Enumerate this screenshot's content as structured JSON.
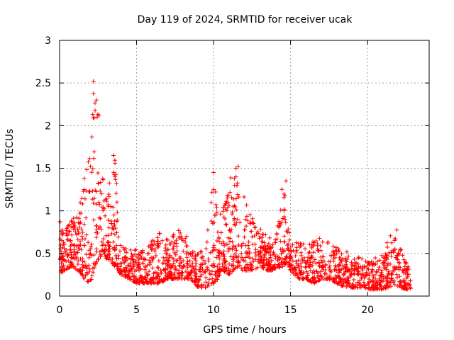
{
  "chart_data": {
    "type": "scatter",
    "title": "Day 119 of 2024, SRMTID for receiver ucak",
    "xlabel": "GPS time / hours",
    "ylabel": "SRMTID / TECUs",
    "xlim": [
      0,
      24
    ],
    "ylim": [
      0,
      3
    ],
    "x_ticks": [
      0,
      5,
      10,
      15,
      20
    ],
    "y_ticks": [
      0,
      0.5,
      1,
      1.5,
      2,
      2.5,
      3
    ],
    "x_tick_labels": [
      "0",
      "5",
      "10",
      "15",
      "20"
    ],
    "y_tick_labels": [
      "0",
      "0.5",
      "1",
      "1.5",
      "2",
      "2.5",
      "3"
    ],
    "grid": true,
    "marker": "+",
    "series": [
      {
        "name": "SRMTID",
        "color": "#ff0000",
        "envelope": {
          "x": [
            0,
            0.3,
            0.8,
            1.2,
            1.6,
            2.0,
            2.2,
            2.4,
            2.6,
            2.8,
            3.0,
            3.3,
            3.6,
            3.8,
            4.0,
            4.5,
            5.0,
            5.5,
            6.0,
            6.5,
            7.0,
            7.5,
            8.0,
            8.5,
            9.0,
            9.5,
            10.0,
            10.3,
            10.6,
            11.0,
            11.3,
            11.6,
            11.9,
            12.2,
            12.6,
            13.0,
            13.5,
            14.0,
            14.5,
            14.8,
            15.0,
            15.5,
            16.0,
            16.5,
            17.0,
            17.5,
            18.0,
            18.5,
            19.0,
            19.5,
            20.0,
            20.5,
            21.0,
            21.3,
            21.6,
            21.9,
            22.2,
            22.5,
            22.8
          ],
          "low": [
            0.25,
            0.3,
            0.35,
            0.3,
            0.2,
            0.15,
            0.3,
            0.4,
            0.45,
            0.5,
            0.45,
            0.4,
            0.35,
            0.3,
            0.25,
            0.2,
            0.15,
            0.15,
            0.15,
            0.15,
            0.2,
            0.2,
            0.2,
            0.2,
            0.1,
            0.1,
            0.15,
            0.2,
            0.3,
            0.25,
            0.3,
            0.35,
            0.3,
            0.3,
            0.3,
            0.35,
            0.3,
            0.3,
            0.35,
            0.4,
            0.3,
            0.2,
            0.2,
            0.15,
            0.2,
            0.2,
            0.15,
            0.1,
            0.1,
            0.1,
            0.08,
            0.08,
            0.08,
            0.1,
            0.12,
            0.12,
            0.1,
            0.08,
            0.08
          ],
          "high": [
            1.02,
            0.75,
            0.9,
            1.0,
            1.4,
            1.7,
            2.5,
            2.35,
            2.1,
            1.5,
            1.3,
            1.35,
            1.65,
            1.0,
            0.6,
            0.55,
            0.55,
            0.55,
            0.65,
            0.75,
            0.7,
            0.75,
            0.85,
            0.6,
            0.5,
            0.6,
            1.45,
            1.0,
            1.05,
            1.3,
            1.55,
            1.5,
            1.2,
            1.1,
            0.9,
            0.8,
            0.7,
            0.75,
            1.35,
            1.0,
            0.6,
            0.65,
            0.6,
            0.65,
            0.7,
            0.65,
            0.6,
            0.55,
            0.5,
            0.45,
            0.4,
            0.45,
            0.5,
            0.65,
            0.8,
            0.78,
            0.55,
            0.4,
            0.35
          ]
        },
        "peaks": [
          {
            "x": 2.2,
            "y": 2.52
          },
          {
            "x": 2.4,
            "y": 2.3
          },
          {
            "x": 3.5,
            "y": 1.65
          },
          {
            "x": 10.0,
            "y": 1.45
          },
          {
            "x": 11.6,
            "y": 1.52
          },
          {
            "x": 14.7,
            "y": 1.35
          }
        ],
        "point_count": 2100
      }
    ]
  }
}
